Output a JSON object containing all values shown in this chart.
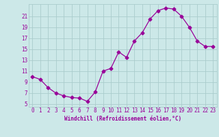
{
  "x": [
    0,
    1,
    2,
    3,
    4,
    5,
    6,
    7,
    8,
    9,
    10,
    11,
    12,
    13,
    14,
    15,
    16,
    17,
    18,
    19,
    20,
    21,
    22,
    23
  ],
  "y": [
    10.0,
    9.5,
    8.0,
    7.0,
    6.5,
    6.2,
    6.1,
    5.5,
    7.2,
    11.0,
    11.5,
    14.5,
    13.5,
    16.5,
    18.0,
    20.5,
    22.0,
    22.5,
    22.3,
    21.0,
    19.0,
    16.5,
    15.5,
    15.5
  ],
  "line_color": "#990099",
  "marker": "D",
  "marker_size": 2.5,
  "bg_color": "#cce8e8",
  "grid_color": "#aacccc",
  "xlabel": "Windchill (Refroidissement éolien,°C)",
  "xlabel_color": "#990099",
  "ylabel_ticks": [
    5,
    7,
    9,
    11,
    13,
    15,
    17,
    19,
    21
  ],
  "xlim": [
    -0.5,
    23.5
  ],
  "ylim": [
    4.5,
    23.2
  ],
  "tick_color": "#990099",
  "font_family": "monospace",
  "label_fontsize": 5.5,
  "tick_fontsize": 5.5,
  "xlabel_fontsize": 5.5
}
